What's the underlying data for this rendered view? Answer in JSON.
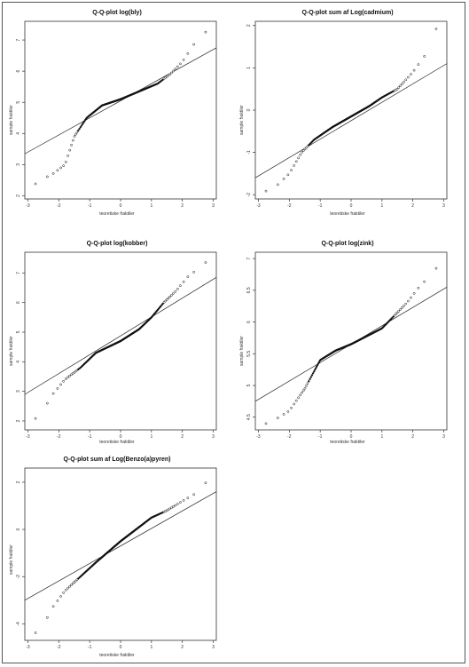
{
  "chart_data": [
    {
      "type": "scatter",
      "title": "Q-Q-plot log(bly)",
      "xlabel": "teoretiske fraktiler",
      "ylabel": "sample fraktiler",
      "xlim": [
        -3.1,
        3.1
      ],
      "ylim": [
        1.9,
        7.6
      ],
      "xticks": [
        -3,
        -2,
        -1,
        0,
        1,
        2,
        3
      ],
      "yticks": [
        2,
        3,
        4,
        5,
        6,
        7
      ],
      "line": {
        "x": [
          -3.1,
          3.1
        ],
        "y": [
          3.35,
          6.75
        ]
      },
      "knots": [
        [
          -3.0,
          2.2
        ],
        [
          -2.6,
          2.5
        ],
        [
          -2.2,
          2.7
        ],
        [
          -1.8,
          3.0
        ],
        [
          -1.5,
          3.9
        ],
        [
          -1.1,
          4.5
        ],
        [
          -0.6,
          4.9
        ],
        [
          0.0,
          5.1
        ],
        [
          0.6,
          5.35
        ],
        [
          1.2,
          5.6
        ],
        [
          1.6,
          5.9
        ],
        [
          2.0,
          6.3
        ],
        [
          2.4,
          6.9
        ],
        [
          2.8,
          7.3
        ],
        [
          3.0,
          7.5
        ]
      ]
    },
    {
      "type": "scatter",
      "title": "Q-Q-plot sum af Log(cadmium)",
      "xlabel": "teoretiske fraktiler",
      "ylabel": "sample fraktiler",
      "xlim": [
        -3.1,
        3.1
      ],
      "ylim": [
        -2.1,
        2.1
      ],
      "xticks": [
        -3,
        -2,
        -1,
        0,
        1,
        2,
        3
      ],
      "yticks": [
        -2,
        -1,
        0,
        1,
        2
      ],
      "line": {
        "x": [
          -3.1,
          3.1
        ],
        "y": [
          -1.6,
          1.1
        ]
      },
      "knots": [
        [
          -2.9,
          -1.95
        ],
        [
          -2.5,
          -1.85
        ],
        [
          -2.0,
          -1.5
        ],
        [
          -1.6,
          -1.0
        ],
        [
          -1.2,
          -0.7
        ],
        [
          -0.6,
          -0.4
        ],
        [
          0.0,
          -0.15
        ],
        [
          0.6,
          0.1
        ],
        [
          1.0,
          0.3
        ],
        [
          1.5,
          0.5
        ],
        [
          2.0,
          0.9
        ],
        [
          2.4,
          1.3
        ],
        [
          2.8,
          2.0
        ]
      ]
    },
    {
      "type": "scatter",
      "title": "Q-Q-plot log(kobber)",
      "xlabel": "teoretiske fraktiler",
      "ylabel": "sample fraktiler",
      "xlim": [
        -3.1,
        3.1
      ],
      "ylim": [
        1.7,
        7.7
      ],
      "xticks": [
        -3,
        -2,
        -1,
        0,
        1,
        2,
        3
      ],
      "yticks": [
        2,
        3,
        4,
        5,
        6,
        7
      ],
      "line": {
        "x": [
          -3.1,
          3.1
        ],
        "y": [
          2.9,
          6.85
        ]
      },
      "knots": [
        [
          -3.0,
          1.9
        ],
        [
          -2.6,
          2.2
        ],
        [
          -2.2,
          2.9
        ],
        [
          -1.8,
          3.4
        ],
        [
          -1.3,
          3.8
        ],
        [
          -0.8,
          4.3
        ],
        [
          0.0,
          4.7
        ],
        [
          0.6,
          5.1
        ],
        [
          1.0,
          5.5
        ],
        [
          1.4,
          6.0
        ],
        [
          1.8,
          6.4
        ],
        [
          2.2,
          6.9
        ],
        [
          2.6,
          7.2
        ],
        [
          3.0,
          7.6
        ]
      ]
    },
    {
      "type": "scatter",
      "title": "Q-Q-plot log(zink)",
      "xlabel": "teoretiske fraktiler",
      "ylabel": "sample fraktiler",
      "xlim": [
        -3.1,
        3.1
      ],
      "ylim": [
        4.3,
        7.1
      ],
      "xticks": [
        -3,
        -2,
        -1,
        0,
        1,
        2,
        3
      ],
      "yticks": [
        4.5,
        5.0,
        5.5,
        6.0,
        6.5,
        7.0
      ],
      "line": {
        "x": [
          -3.1,
          3.1
        ],
        "y": [
          4.75,
          6.55
        ]
      },
      "knots": [
        [
          -3.0,
          4.35
        ],
        [
          -2.5,
          4.45
        ],
        [
          -2.0,
          4.6
        ],
        [
          -1.5,
          4.95
        ],
        [
          -1.0,
          5.4
        ],
        [
          -0.5,
          5.55
        ],
        [
          0.0,
          5.65
        ],
        [
          0.6,
          5.8
        ],
        [
          1.0,
          5.9
        ],
        [
          1.4,
          6.1
        ],
        [
          1.8,
          6.3
        ],
        [
          2.2,
          6.55
        ],
        [
          2.6,
          6.75
        ],
        [
          3.0,
          7.0
        ]
      ]
    },
    {
      "type": "scatter",
      "title": "Q-Q-plot sum af Log(Benzo(a)pyren)",
      "xlabel": "teoretiske fraktiler",
      "ylabel": "sample fraktiler",
      "xlim": [
        -3.1,
        3.1
      ],
      "ylim": [
        -4.7,
        2.6
      ],
      "xticks": [
        -3,
        -2,
        -1,
        0,
        1,
        2,
        3
      ],
      "yticks": [
        -4,
        -2,
        0,
        2
      ],
      "line": {
        "x": [
          -3.1,
          3.1
        ],
        "y": [
          -3.0,
          1.6
        ]
      },
      "knots": [
        [
          -3.0,
          -4.5
        ],
        [
          -2.6,
          -4.3
        ],
        [
          -2.2,
          -3.3
        ],
        [
          -1.8,
          -2.6
        ],
        [
          -1.3,
          -2.0
        ],
        [
          -0.8,
          -1.4
        ],
        [
          0.0,
          -0.5
        ],
        [
          0.6,
          0.1
        ],
        [
          1.0,
          0.5
        ],
        [
          1.5,
          0.8
        ],
        [
          2.0,
          1.2
        ],
        [
          2.4,
          1.5
        ],
        [
          3.0,
          2.3
        ]
      ]
    }
  ]
}
